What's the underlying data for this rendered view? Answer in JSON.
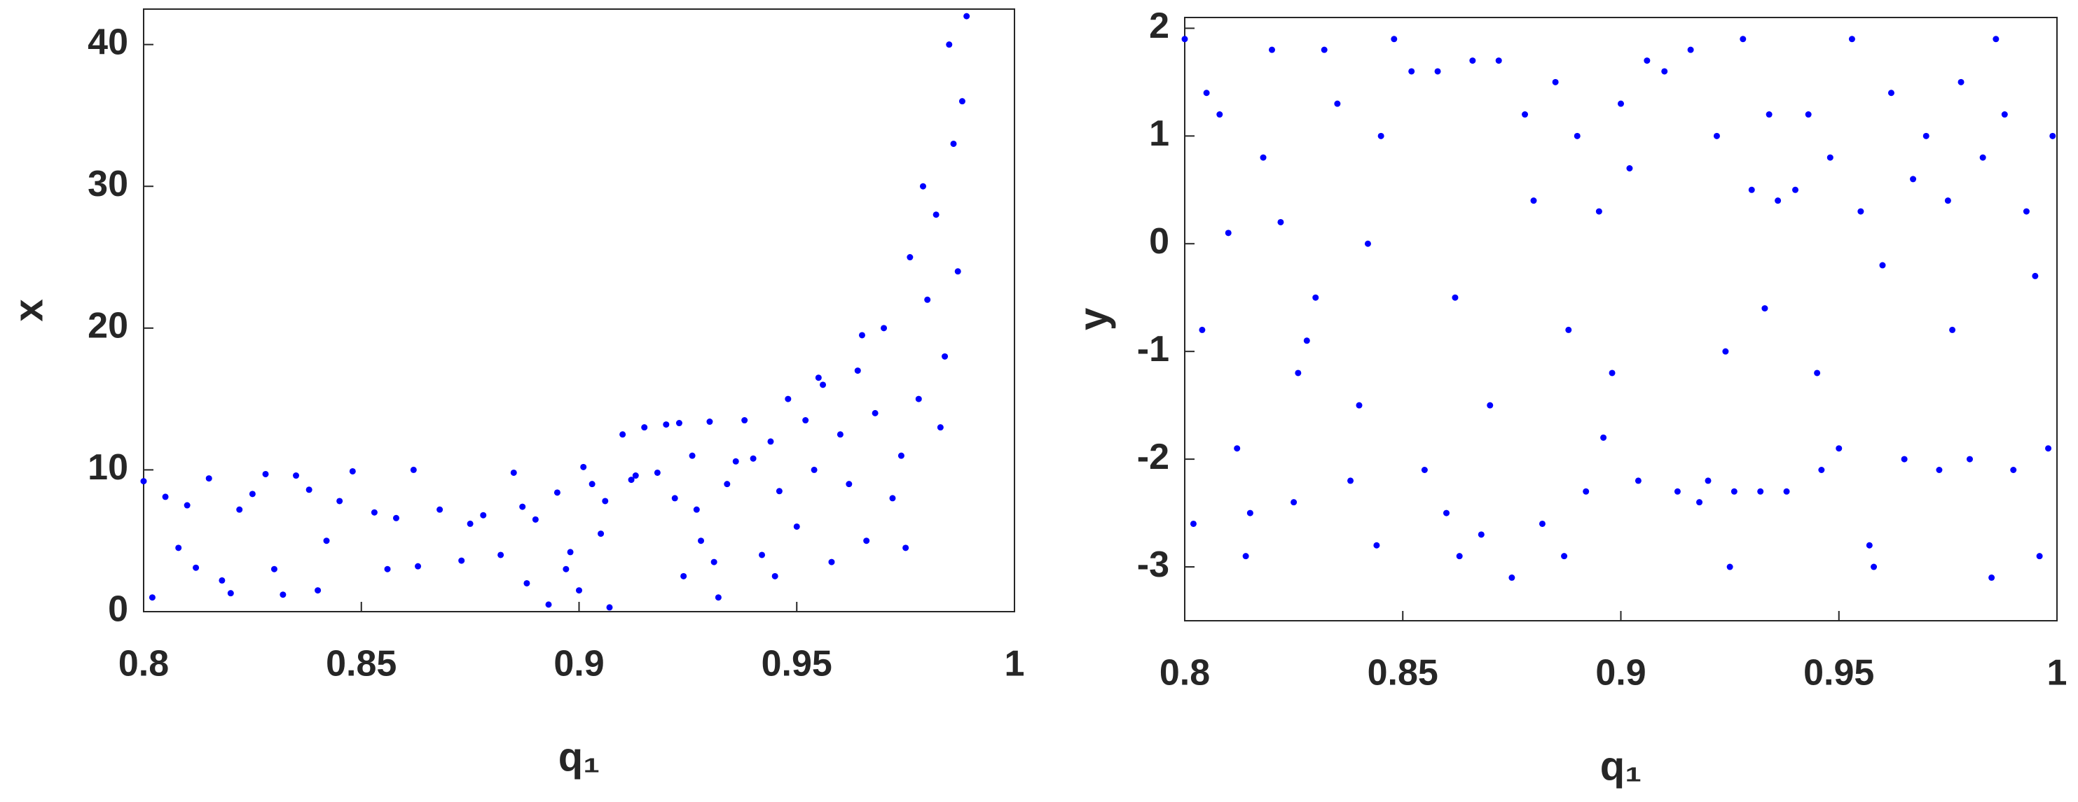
{
  "chart_data": [
    {
      "type": "scatter",
      "xlabel": "q₁",
      "ylabel": "x",
      "color": "#0000ff",
      "xlim": [
        0.8,
        1
      ],
      "xticks": [
        0.8,
        0.85,
        0.9,
        0.95,
        1
      ],
      "ylim": [
        0,
        42.5
      ],
      "yticks": [
        0,
        10,
        20,
        30,
        40
      ],
      "x": [
        0.8,
        0.805,
        0.81,
        0.815,
        0.82,
        0.825,
        0.83,
        0.835,
        0.84,
        0.845,
        0.802,
        0.812,
        0.822,
        0.832,
        0.842,
        0.848,
        0.808,
        0.818,
        0.828,
        0.838,
        0.853,
        0.858,
        0.863,
        0.868,
        0.873,
        0.878,
        0.882,
        0.856,
        0.862,
        0.875,
        0.885,
        0.888,
        0.89,
        0.893,
        0.895,
        0.898,
        0.9,
        0.903,
        0.905,
        0.907,
        0.887,
        0.897,
        0.901,
        0.906,
        0.91,
        0.913,
        0.915,
        0.918,
        0.92,
        0.912,
        0.922,
        0.924,
        0.926,
        0.928,
        0.93,
        0.932,
        0.934,
        0.923,
        0.927,
        0.931,
        0.936,
        0.938,
        0.94,
        0.942,
        0.944,
        0.946,
        0.948,
        0.95,
        0.952,
        0.954,
        0.956,
        0.958,
        0.96,
        0.962,
        0.964,
        0.966,
        0.968,
        0.945,
        0.955,
        0.965,
        0.97,
        0.972,
        0.974,
        0.976,
        0.978,
        0.98,
        0.982,
        0.984,
        0.986,
        0.987,
        0.988,
        0.989,
        0.975,
        0.979,
        0.983,
        0.985
      ],
      "values": [
        9.2,
        8.1,
        7.5,
        9.4,
        1.3,
        8.3,
        3.0,
        9.6,
        1.5,
        7.8,
        1.0,
        3.1,
        7.2,
        1.2,
        5.0,
        9.9,
        4.5,
        2.2,
        9.7,
        8.6,
        7.0,
        6.6,
        3.2,
        7.2,
        3.6,
        6.8,
        4.0,
        3.0,
        10.0,
        6.2,
        9.8,
        2.0,
        6.5,
        0.5,
        8.4,
        4.2,
        1.5,
        9.0,
        5.5,
        0.3,
        7.4,
        3.0,
        10.2,
        7.8,
        12.5,
        9.6,
        13.0,
        9.8,
        13.2,
        9.3,
        8.0,
        2.5,
        11.0,
        5.0,
        13.4,
        1.0,
        9.0,
        13.3,
        7.2,
        3.5,
        10.6,
        13.5,
        10.8,
        4.0,
        12.0,
        8.5,
        15.0,
        6.0,
        13.5,
        10.0,
        16.0,
        3.5,
        12.5,
        9.0,
        17.0,
        5.0,
        14.0,
        2.5,
        16.5,
        19.5,
        20.0,
        8.0,
        11.0,
        25.0,
        15.0,
        22.0,
        28.0,
        18.0,
        33.0,
        24.0,
        36.0,
        42.0,
        4.5,
        30.0,
        13.0,
        40.0
      ]
    },
    {
      "type": "scatter",
      "xlabel": "q₁",
      "ylabel": "y",
      "color": "#0000ff",
      "xlim": [
        0.8,
        1
      ],
      "xticks": [
        0.8,
        0.85,
        0.9,
        0.95,
        1
      ],
      "ylim": [
        -3.5,
        2.1
      ],
      "yticks": [
        -3,
        -2,
        -1,
        0,
        1,
        2
      ],
      "x": [
        0.8,
        0.805,
        0.81,
        0.815,
        0.82,
        0.825,
        0.83,
        0.835,
        0.84,
        0.845,
        0.802,
        0.808,
        0.812,
        0.818,
        0.822,
        0.828,
        0.832,
        0.838,
        0.842,
        0.848,
        0.804,
        0.814,
        0.826,
        0.844,
        0.852,
        0.855,
        0.858,
        0.86,
        0.863,
        0.866,
        0.868,
        0.87,
        0.872,
        0.875,
        0.878,
        0.88,
        0.882,
        0.862,
        0.885,
        0.888,
        0.89,
        0.892,
        0.895,
        0.898,
        0.9,
        0.902,
        0.904,
        0.906,
        0.887,
        0.896,
        0.91,
        0.913,
        0.916,
        0.918,
        0.92,
        0.922,
        0.924,
        0.926,
        0.928,
        0.93,
        0.932,
        0.934,
        0.936,
        0.938,
        0.925,
        0.933,
        0.94,
        0.943,
        0.946,
        0.948,
        0.95,
        0.953,
        0.955,
        0.957,
        0.96,
        0.962,
        0.965,
        0.967,
        0.945,
        0.958,
        0.97,
        0.973,
        0.975,
        0.978,
        0.98,
        0.983,
        0.985,
        0.988,
        0.99,
        0.993,
        0.995,
        0.998,
        0.976,
        0.986,
        0.996,
        0.999
      ],
      "values": [
        1.9,
        1.4,
        0.1,
        -2.5,
        1.8,
        -2.4,
        -0.5,
        1.3,
        -1.5,
        1.0,
        -2.6,
        1.2,
        -1.9,
        0.8,
        0.2,
        -0.9,
        1.8,
        -2.2,
        0.0,
        1.9,
        -0.8,
        -2.9,
        -1.2,
        -2.8,
        1.6,
        -2.1,
        1.6,
        -2.5,
        -2.9,
        1.7,
        -2.7,
        -1.5,
        1.7,
        -3.1,
        1.2,
        0.4,
        -2.6,
        -0.5,
        1.5,
        -0.8,
        1.0,
        -2.3,
        0.3,
        -1.2,
        1.3,
        0.7,
        -2.2,
        1.7,
        -2.9,
        -1.8,
        1.6,
        -2.3,
        1.8,
        -2.4,
        -2.2,
        1.0,
        -1.0,
        -2.3,
        1.9,
        0.5,
        -2.3,
        1.2,
        0.4,
        -2.3,
        -3.0,
        -0.6,
        0.5,
        1.2,
        -2.1,
        0.8,
        -1.9,
        1.9,
        0.3,
        -2.8,
        -0.2,
        1.4,
        -2.0,
        0.6,
        -1.2,
        -3.0,
        1.0,
        -2.1,
        0.4,
        1.5,
        -2.0,
        0.8,
        -3.1,
        1.2,
        -2.1,
        0.3,
        -0.3,
        -1.9,
        -0.8,
        1.9,
        -2.9,
        1.0
      ]
    }
  ]
}
